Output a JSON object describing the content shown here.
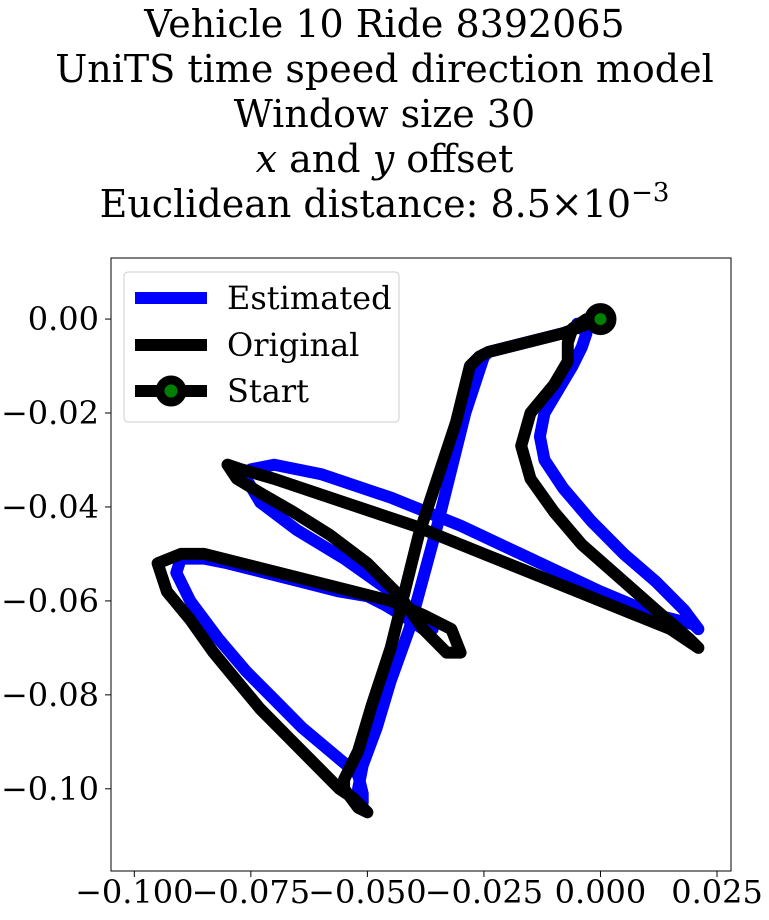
{
  "chart_data": {
    "type": "line",
    "title_lines": [
      "Vehicle 10 Ride 8392065",
      "UniTS time speed direction model",
      "Window size 30",
      "x and y offset",
      "Euclidean distance: 8.5×10⁻³"
    ],
    "title_parts": {
      "line4_var1": "x",
      "line4_mid": " and ",
      "line4_var2": "y",
      "line4_end": " offset",
      "line5_prefix": "Euclidean distance: 8.5×10",
      "line5_exp": "−3"
    },
    "xlim": [
      -0.105,
      0.028
    ],
    "ylim": [
      -0.1175,
      0.013
    ],
    "x_ticks": [
      -0.1,
      -0.075,
      -0.05,
      -0.025,
      0.0,
      0.025
    ],
    "x_tick_labels": [
      "−0.100",
      "−0.075",
      "−0.050",
      "−0.025",
      "0.000",
      "0.025"
    ],
    "y_ticks": [
      0.0,
      -0.02,
      -0.04,
      -0.06,
      -0.08,
      -0.1
    ],
    "y_tick_labels": [
      "0.00",
      "−0.02",
      "−0.04",
      "−0.06",
      "−0.08",
      "−0.10"
    ],
    "grid": false,
    "legend_position": "top-left",
    "series": [
      {
        "name": "Estimated",
        "color": "#0000ff",
        "x": [
          0.0,
          -0.008,
          -0.016,
          -0.024,
          -0.025,
          -0.029,
          -0.032,
          -0.035,
          -0.038,
          -0.041,
          -0.045,
          -0.048,
          -0.051,
          -0.052,
          -0.051,
          -0.051,
          -0.052,
          -0.058,
          -0.064,
          -0.07,
          -0.076,
          -0.082,
          -0.088,
          -0.091,
          -0.09,
          -0.085,
          -0.08,
          -0.072,
          -0.064,
          -0.056,
          -0.05,
          -0.046,
          -0.041,
          -0.038,
          -0.036,
          -0.045,
          -0.055,
          -0.065,
          -0.073,
          -0.076,
          -0.075,
          -0.07,
          -0.06,
          -0.045,
          -0.03,
          -0.015,
          0.0,
          0.012,
          0.02,
          0.021,
          0.018,
          0.012,
          0.005,
          -0.002,
          -0.008,
          -0.012,
          -0.013,
          -0.012,
          -0.009,
          -0.006,
          -0.004,
          -0.003,
          -0.005
        ],
        "y": [
          0.0,
          -0.003,
          -0.005,
          -0.007,
          -0.008,
          -0.02,
          -0.032,
          -0.044,
          -0.055,
          -0.066,
          -0.077,
          -0.087,
          -0.095,
          -0.1,
          -0.103,
          -0.101,
          -0.097,
          -0.092,
          -0.087,
          -0.081,
          -0.075,
          -0.068,
          -0.06,
          -0.054,
          -0.051,
          -0.051,
          -0.052,
          -0.054,
          -0.056,
          -0.058,
          -0.059,
          -0.061,
          -0.064,
          -0.066,
          -0.066,
          -0.058,
          -0.051,
          -0.045,
          -0.039,
          -0.034,
          -0.032,
          -0.031,
          -0.033,
          -0.038,
          -0.044,
          -0.051,
          -0.058,
          -0.063,
          -0.065,
          -0.066,
          -0.062,
          -0.056,
          -0.05,
          -0.043,
          -0.036,
          -0.03,
          -0.025,
          -0.02,
          -0.015,
          -0.01,
          -0.006,
          -0.003,
          -0.001
        ]
      },
      {
        "name": "Original",
        "color": "#000000",
        "x": [
          0.0,
          -0.008,
          -0.016,
          -0.024,
          -0.026,
          -0.028,
          -0.031,
          -0.035,
          -0.039,
          -0.042,
          -0.045,
          -0.049,
          -0.052,
          -0.055,
          -0.055,
          -0.052,
          -0.05,
          -0.053,
          -0.056,
          -0.06,
          -0.066,
          -0.073,
          -0.078,
          -0.083,
          -0.088,
          -0.093,
          -0.095,
          -0.09,
          -0.085,
          -0.077,
          -0.069,
          -0.061,
          -0.053,
          -0.045,
          -0.038,
          -0.032,
          -0.03,
          -0.033,
          -0.038,
          -0.043,
          -0.05,
          -0.058,
          -0.066,
          -0.073,
          -0.078,
          -0.08,
          -0.077,
          -0.07,
          -0.055,
          -0.04,
          -0.025,
          -0.01,
          0.005,
          0.015,
          0.021,
          0.019,
          0.012,
          0.004,
          -0.004,
          -0.01,
          -0.015,
          -0.017,
          -0.015,
          -0.01,
          -0.007,
          -0.007,
          -0.006,
          -0.003
        ],
        "y": [
          0.0,
          -0.003,
          -0.005,
          -0.007,
          -0.008,
          -0.01,
          -0.022,
          -0.034,
          -0.046,
          -0.058,
          -0.07,
          -0.082,
          -0.092,
          -0.098,
          -0.1,
          -0.104,
          -0.105,
          -0.102,
          -0.1,
          -0.096,
          -0.09,
          -0.083,
          -0.077,
          -0.071,
          -0.064,
          -0.058,
          -0.052,
          -0.05,
          -0.05,
          -0.052,
          -0.054,
          -0.056,
          -0.058,
          -0.06,
          -0.063,
          -0.066,
          -0.071,
          -0.071,
          -0.066,
          -0.059,
          -0.052,
          -0.046,
          -0.041,
          -0.037,
          -0.034,
          -0.031,
          -0.032,
          -0.034,
          -0.039,
          -0.044,
          -0.05,
          -0.056,
          -0.062,
          -0.066,
          -0.07,
          -0.068,
          -0.062,
          -0.055,
          -0.048,
          -0.041,
          -0.034,
          -0.027,
          -0.02,
          -0.014,
          -0.009,
          -0.005,
          -0.002,
          0.0
        ]
      }
    ],
    "start_marker": {
      "name": "Start",
      "x": 0.0,
      "y": 0.0,
      "edge_color": "#000000",
      "face_color": "#008000"
    }
  }
}
